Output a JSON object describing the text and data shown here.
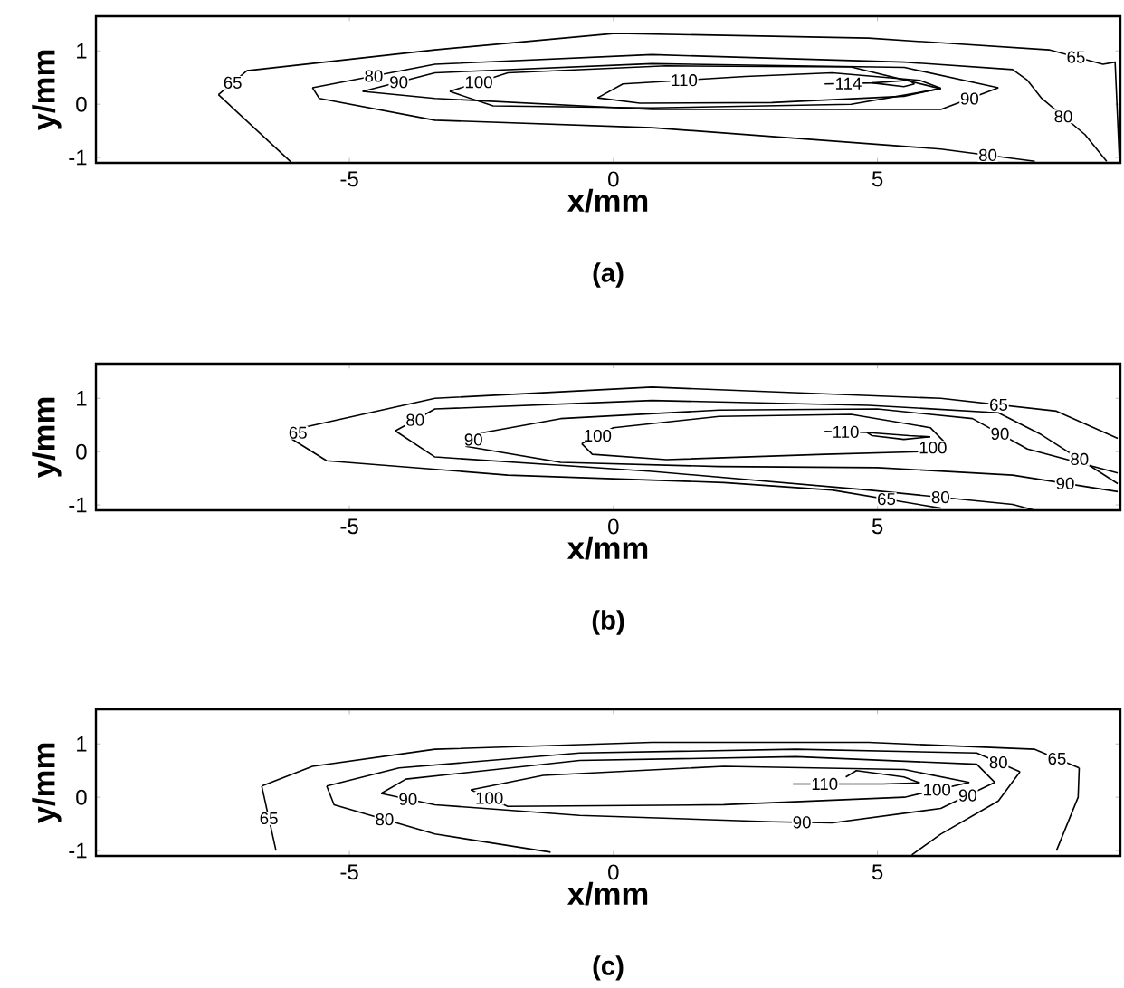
{
  "chart_data": [
    {
      "type": "line",
      "title": "(a)",
      "xlabel": "x/mm",
      "ylabel": "y/mm",
      "xlim": [
        -9.8,
        9.6
      ],
      "ylim": [
        -1.1,
        1.65
      ],
      "xticks": [
        -5,
        0,
        5
      ],
      "yticks": [
        -1,
        0,
        1
      ],
      "series": [
        {
          "color": "#000000",
          "x": [
            -7.48,
            -6.11
          ],
          "values": [
            0.18,
            -1.08
          ]
        },
        {
          "color": "#000000",
          "x": [
            -7.48,
            -6.94,
            -3.38,
            0.04,
            4.83,
            8.25,
            9.27,
            9.5,
            9.58
          ],
          "values": [
            0.18,
            0.63,
            1.02,
            1.33,
            1.24,
            1.02,
            0.75,
            0.79,
            -1.0
          ]
        },
        {
          "color": "#000000",
          "x": [
            -5.7,
            -3.38,
            0.73,
            5.51,
            7.56,
            7.84,
            8.11,
            8.93,
            9.34
          ],
          "values": [
            0.31,
            0.75,
            0.93,
            0.79,
            0.65,
            0.45,
            0.11,
            -0.57,
            -1.07
          ]
        },
        {
          "color": "#000000",
          "x": [
            -5.7,
            -5.57,
            -3.38,
            0.73,
            6.2,
            7.98
          ],
          "values": [
            0.31,
            0.11,
            -0.3,
            -0.44,
            -0.84,
            -1.07
          ]
        },
        {
          "color": "#000000",
          "x": [
            -4.75,
            -3.38,
            0.73,
            5.51,
            7.29
          ],
          "values": [
            0.24,
            0.59,
            0.76,
            0.69,
            0.31
          ]
        },
        {
          "color": "#000000",
          "x": [
            -4.75,
            -3.38,
            0.73,
            6.2,
            7.29
          ],
          "values": [
            0.24,
            0.11,
            -0.1,
            -0.1,
            0.31
          ]
        },
        {
          "color": "#000000",
          "x": [
            -3.1,
            -2.0,
            1.0,
            4.5,
            6.2
          ],
          "values": [
            0.24,
            0.59,
            0.72,
            0.7,
            0.29
          ]
        },
        {
          "color": "#000000",
          "x": [
            -3.1,
            -2.28,
            0.73,
            4.5,
            6.2
          ],
          "values": [
            0.24,
            -0.03,
            -0.07,
            0.0,
            0.29
          ]
        },
        {
          "color": "#000000",
          "x": [
            -0.3,
            0.18,
            2.5,
            4.14,
            5.8,
            6.2
          ],
          "values": [
            0.12,
            0.38,
            0.52,
            0.59,
            0.45,
            0.3
          ]
        },
        {
          "color": "#000000",
          "x": [
            -0.3,
            0.5,
            3.0,
            5.5,
            6.2
          ],
          "values": [
            0.12,
            0.02,
            0.03,
            0.15,
            0.3
          ]
        },
        {
          "color": "#000000",
          "x": [
            4.0,
            4.9,
            5.6,
            5.7
          ],
          "values": [
            0.38,
            0.4,
            0.45,
            0.38
          ]
        },
        {
          "color": "#000000",
          "x": [
            4.9,
            5.5,
            5.7
          ],
          "values": [
            0.4,
            0.33,
            0.38
          ]
        }
      ],
      "annotations": [
        {
          "text": "65",
          "x": -7.21,
          "y": 0.405
        },
        {
          "text": "65",
          "x": 8.76,
          "y": 0.885
        },
        {
          "text": "80",
          "x": -4.54,
          "y": 0.53
        },
        {
          "text": "80",
          "x": 8.52,
          "y": -0.23
        },
        {
          "text": "80",
          "x": 7.09,
          "y": -0.955
        },
        {
          "text": "90",
          "x": -4.065,
          "y": 0.415
        },
        {
          "text": "90",
          "x": 6.745,
          "y": 0.105
        },
        {
          "text": "100",
          "x": -2.55,
          "y": 0.415
        },
        {
          "text": "110",
          "x": 1.34,
          "y": 0.45
        },
        {
          "text": "114",
          "x": 4.45,
          "y": 0.39
        }
      ]
    },
    {
      "type": "line",
      "title": "(b)",
      "xlabel": "x/mm",
      "ylabel": "y/mm",
      "xlim": [
        -9.8,
        9.6
      ],
      "ylim": [
        -1.1,
        1.65
      ],
      "xticks": [
        -5,
        0,
        5
      ],
      "yticks": [
        -1,
        0,
        1
      ],
      "series": [
        {
          "color": "#000000",
          "x": [
            -6.11,
            -5.84,
            -3.38,
            0.73,
            6.2,
            8.39,
            9.55
          ],
          "values": [
            0.25,
            0.46,
            1.0,
            1.21,
            1.0,
            0.76,
            0.25
          ]
        },
        {
          "color": "#000000",
          "x": [
            -6.11,
            -5.43,
            -2.0,
            2.09,
            4.14,
            6.2
          ],
          "values": [
            0.25,
            -0.17,
            -0.44,
            -0.58,
            -0.72,
            -1.06
          ]
        },
        {
          "color": "#000000",
          "x": [
            -4.13,
            -3.38,
            0.73,
            4.83,
            7.29,
            8.1,
            9.55
          ],
          "values": [
            0.39,
            0.8,
            0.96,
            0.87,
            0.73,
            0.32,
            -0.6
          ]
        },
        {
          "color": "#000000",
          "x": [
            -4.13,
            -3.38,
            0.73,
            4.83,
            7.56,
            7.98
          ],
          "values": [
            0.39,
            -0.1,
            -0.37,
            -0.72,
            -0.99,
            -1.1
          ]
        },
        {
          "color": "#000000",
          "x": [
            -2.8,
            -2.5,
            -1.0,
            2.0,
            5.0,
            6.8,
            7.84,
            9.55
          ],
          "values": [
            0.1,
            0.35,
            0.62,
            0.78,
            0.8,
            0.62,
            0.05,
            -0.4
          ]
        },
        {
          "color": "#000000",
          "x": [
            -2.8,
            -1.0,
            2.0,
            5.0,
            7.56,
            9.55
          ],
          "values": [
            0.1,
            -0.2,
            -0.28,
            -0.3,
            -0.44,
            -0.75
          ]
        },
        {
          "color": "#000000",
          "x": [
            -0.6,
            0.0,
            2.0,
            4.5,
            6.0,
            6.3
          ],
          "values": [
            0.15,
            0.45,
            0.66,
            0.7,
            0.45,
            0.15
          ]
        },
        {
          "color": "#000000",
          "x": [
            -0.6,
            -0.4,
            1.0,
            4.0,
            5.8,
            6.3
          ],
          "values": [
            0.15,
            -0.05,
            -0.15,
            -0.05,
            0.0,
            0.15
          ]
        },
        {
          "color": "#000000",
          "x": [
            4.0,
            4.8,
            5.6,
            6.0
          ],
          "values": [
            0.38,
            0.36,
            0.3,
            0.28
          ]
        },
        {
          "color": "#000000",
          "x": [
            4.8,
            4.9,
            5.5,
            6.0
          ],
          "values": [
            0.36,
            0.3,
            0.23,
            0.28
          ]
        }
      ],
      "annotations": [
        {
          "text": "65",
          "x": -5.975,
          "y": 0.355
        },
        {
          "text": "65",
          "x": 7.295,
          "y": 0.88
        },
        {
          "text": "65",
          "x": 5.17,
          "y": -0.89
        },
        {
          "text": "80",
          "x": -3.755,
          "y": 0.595
        },
        {
          "text": "80",
          "x": 8.825,
          "y": -0.14
        },
        {
          "text": "80",
          "x": 6.195,
          "y": -0.855
        },
        {
          "text": "90",
          "x": -2.65,
          "y": 0.225
        },
        {
          "text": "90",
          "x": 7.32,
          "y": 0.335
        },
        {
          "text": "90",
          "x": 8.555,
          "y": -0.595
        },
        {
          "text": "100",
          "x": -0.3,
          "y": 0.3
        },
        {
          "text": "100",
          "x": 6.05,
          "y": 0.075
        },
        {
          "text": "110",
          "x": 4.4,
          "y": 0.37
        }
      ]
    },
    {
      "type": "line",
      "title": "(c)",
      "xlabel": "x/mm",
      "ylabel": "y/mm",
      "xlim": [
        -9.8,
        9.6
      ],
      "ylim": [
        -1.1,
        1.65
      ],
      "xticks": [
        -5,
        0,
        5
      ],
      "yticks": [
        -1,
        0,
        1
      ],
      "series": [
        {
          "color": "#000000",
          "x": [
            -6.66,
            -6.39
          ],
          "values": [
            0.21,
            -1.0
          ]
        },
        {
          "color": "#000000",
          "x": [
            -6.66,
            -5.7,
            -3.38,
            0.73,
            4.83,
            7.98,
            8.82
          ],
          "values": [
            0.21,
            0.58,
            0.9,
            1.03,
            1.03,
            0.9,
            0.55
          ]
        },
        {
          "color": "#000000",
          "x": [
            8.39,
            8.8,
            8.82
          ],
          "values": [
            -1.0,
            0.0,
            0.55
          ]
        },
        {
          "color": "#000000",
          "x": [
            -5.43,
            -4.06,
            -0.64,
            3.46,
            6.88,
            7.7
          ],
          "values": [
            0.21,
            0.55,
            0.83,
            0.9,
            0.83,
            0.48
          ]
        },
        {
          "color": "#000000",
          "x": [
            -5.43,
            -5.29,
            -3.38,
            -1.19
          ],
          "values": [
            0.21,
            -0.14,
            -0.69,
            -1.03
          ]
        },
        {
          "color": "#000000",
          "x": [
            5.65,
            6.2,
            7.29,
            7.7
          ],
          "values": [
            -1.08,
            -0.69,
            -0.07,
            0.48
          ]
        },
        {
          "color": "#000000",
          "x": [
            -4.4,
            -3.93,
            -0.64,
            3.46,
            6.88,
            7.22
          ],
          "values": [
            0.07,
            0.34,
            0.69,
            0.76,
            0.62,
            0.28
          ]
        },
        {
          "color": "#000000",
          "x": [
            -4.4,
            -3.38,
            -0.64,
            3.0,
            4.14,
            6.2,
            7.22
          ],
          "values": [
            0.07,
            -0.14,
            -0.34,
            -0.46,
            -0.48,
            -0.21,
            0.28
          ]
        },
        {
          "color": "#000000",
          "x": [
            -2.7,
            -1.33,
            2.09,
            5.51,
            6.74
          ],
          "values": [
            0.14,
            0.41,
            0.58,
            0.52,
            0.28
          ]
        },
        {
          "color": "#000000",
          "x": [
            -2.7,
            -2.0,
            2.09,
            5.51,
            6.74
          ],
          "values": [
            0.14,
            -0.17,
            -0.14,
            0.0,
            0.28
          ]
        },
        {
          "color": "#000000",
          "x": [
            4.4,
            4.6,
            5.5,
            5.8
          ],
          "values": [
            0.38,
            0.5,
            0.38,
            0.27
          ]
        },
        {
          "color": "#000000",
          "x": [
            3.4,
            4.6,
            5.1,
            5.8
          ],
          "values": [
            0.25,
            0.25,
            0.25,
            0.27
          ]
        }
      ],
      "annotations": [
        {
          "text": "65",
          "x": -6.525,
          "y": -0.395
        },
        {
          "text": "65",
          "x": 8.4,
          "y": 0.725
        },
        {
          "text": "80",
          "x": -4.335,
          "y": -0.415
        },
        {
          "text": "80",
          "x": 7.29,
          "y": 0.655
        },
        {
          "text": "90",
          "x": -3.89,
          "y": -0.035
        },
        {
          "text": "90",
          "x": 3.57,
          "y": -0.47
        },
        {
          "text": "90",
          "x": 6.71,
          "y": 0.035
        },
        {
          "text": "100",
          "x": -2.35,
          "y": -0.015
        },
        {
          "text": "100",
          "x": 6.125,
          "y": 0.14
        },
        {
          "text": "110",
          "x": 4.0,
          "y": 0.25
        }
      ]
    }
  ]
}
